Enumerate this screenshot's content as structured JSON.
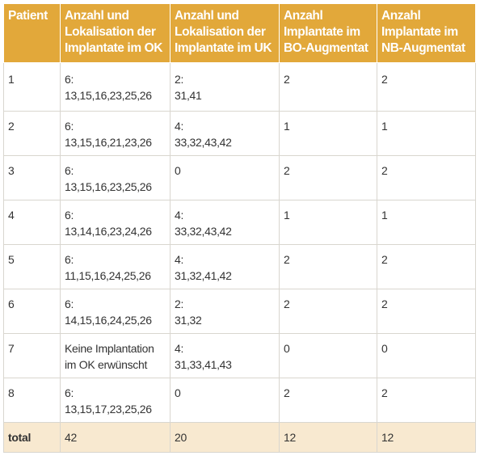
{
  "table": {
    "headers": [
      [
        "Patient"
      ],
      [
        "Anzahl und",
        "Lokalisation der",
        "Implantate im OK"
      ],
      [
        "Anzahl und",
        "Lokalisation der",
        "Implantate im UK"
      ],
      [
        "Anzahl",
        "Implantate im",
        "BO-Augmentat"
      ],
      [
        "Anzahl",
        "Implantate im",
        "NB-Augmentat"
      ]
    ],
    "rows": [
      {
        "patient": "1",
        "ok": [
          "6:",
          "13,15,16,23,25,26"
        ],
        "uk": [
          "2:",
          "31,41"
        ],
        "bo": "2",
        "nb": "2"
      },
      {
        "patient": "2",
        "ok": [
          "6:",
          "13,15,16,21,23,26"
        ],
        "uk": [
          "4:",
          "33,32,43,42"
        ],
        "bo": "1",
        "nb": "1"
      },
      {
        "patient": "3",
        "ok": [
          "6:",
          "13,15,16,23,25,26"
        ],
        "uk": [
          "0"
        ],
        "bo": "2",
        "nb": "2"
      },
      {
        "patient": "4",
        "ok": [
          "6:",
          "13,14,16,23,24,26"
        ],
        "uk": [
          "4:",
          "33,32,43,42"
        ],
        "bo": "1",
        "nb": "1"
      },
      {
        "patient": "5",
        "ok": [
          "6:",
          "11,15,16,24,25,26"
        ],
        "uk": [
          "4:",
          "31,32,41,42"
        ],
        "bo": "2",
        "nb": "2"
      },
      {
        "patient": "6",
        "ok": [
          "6:",
          "14,15,16,24,25,26"
        ],
        "uk": [
          "2:",
          "31,32"
        ],
        "bo": "2",
        "nb": "2"
      },
      {
        "patient": "7",
        "ok": [
          "Keine Implantation",
          "im OK erwünscht"
        ],
        "uk": [
          "4:",
          "31,33,41,43"
        ],
        "bo": "0",
        "nb": "0"
      },
      {
        "patient": "8",
        "ok": [
          "6:",
          "13,15,17,23,25,26"
        ],
        "uk": [
          "0"
        ],
        "bo": "2",
        "nb": "2"
      }
    ],
    "total": {
      "label": "total",
      "ok": "42",
      "uk": "20",
      "bo": "12",
      "nb": "12"
    }
  },
  "colors": {
    "header_bg": "#e2a83a",
    "header_text": "#ffffff",
    "total_bg": "#f8e9d0",
    "body_text": "#333333"
  }
}
